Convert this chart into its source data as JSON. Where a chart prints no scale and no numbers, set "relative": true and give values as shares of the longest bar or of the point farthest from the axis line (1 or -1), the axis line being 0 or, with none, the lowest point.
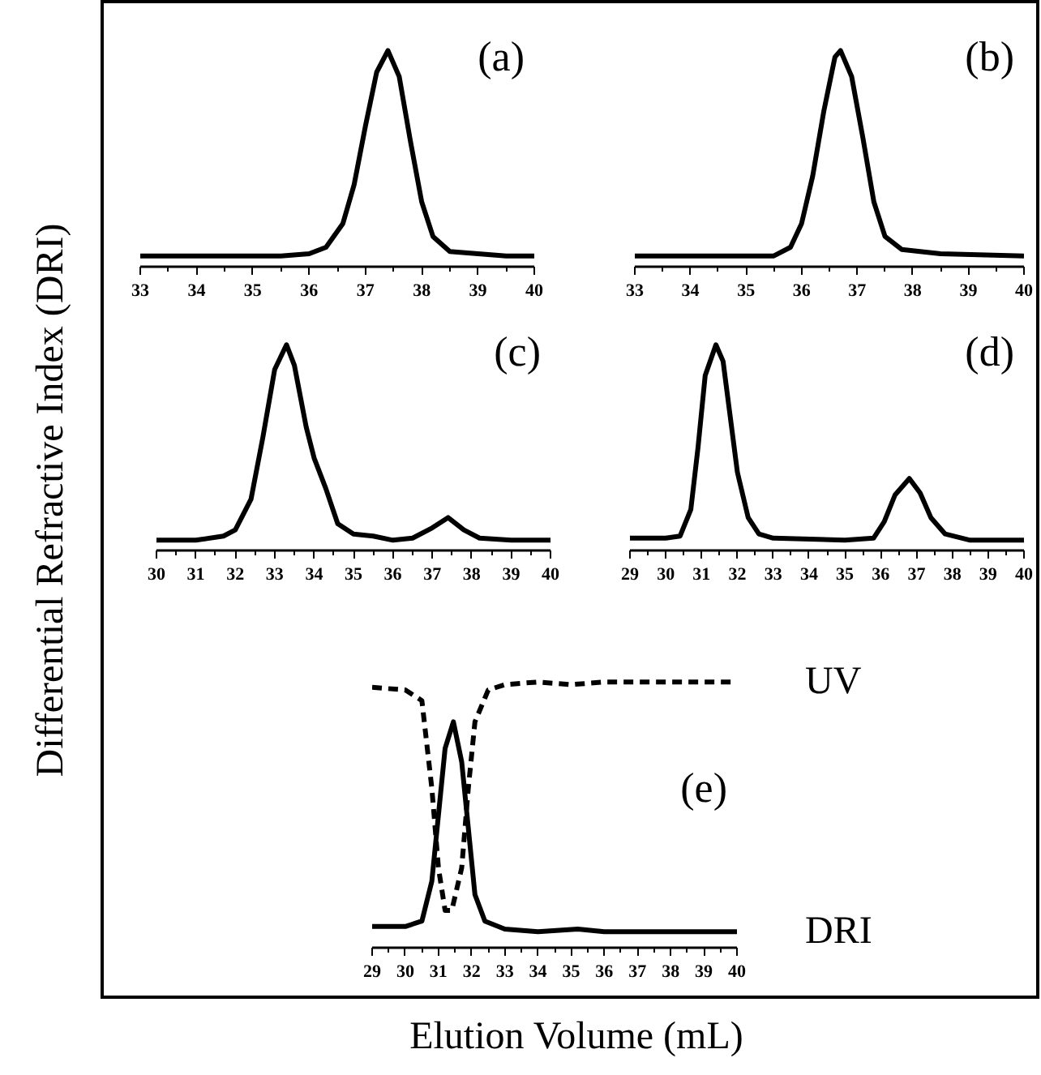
{
  "chart_data": [
    {
      "type": "line",
      "relative": true,
      "ylabel": "Differential Refractive Index (DRI)",
      "annotations": [
        "(a)"
      ],
      "xlim": [
        33,
        40
      ],
      "xticks": [
        33,
        34,
        35,
        36,
        37,
        38,
        39,
        40
      ],
      "grid": false,
      "series": [
        {
          "color": "#000000",
          "line_style": "solid",
          "x": [
            33,
            34,
            35,
            35.5,
            36,
            36.3,
            36.6,
            36.8,
            37.0,
            37.2,
            37.4,
            37.6,
            37.8,
            38.0,
            38.2,
            38.5,
            39,
            39.5,
            40
          ],
          "values": [
            0.05,
            0.05,
            0.05,
            0.05,
            0.06,
            0.09,
            0.2,
            0.38,
            0.65,
            0.9,
            1.0,
            0.88,
            0.58,
            0.3,
            0.14,
            0.07,
            0.06,
            0.05,
            0.05
          ]
        }
      ]
    },
    {
      "type": "line",
      "relative": true,
      "annotations": [
        "(b)"
      ],
      "xlim": [
        33,
        40
      ],
      "xticks": [
        33,
        34,
        35,
        36,
        37,
        38,
        39,
        40
      ],
      "grid": false,
      "series": [
        {
          "color": "#000000",
          "line_style": "solid",
          "x": [
            33,
            34,
            35,
            35.5,
            35.8,
            36.0,
            36.2,
            36.4,
            36.6,
            36.7,
            36.9,
            37.1,
            37.3,
            37.5,
            37.8,
            38.5,
            40
          ],
          "values": [
            0.05,
            0.05,
            0.05,
            0.05,
            0.09,
            0.2,
            0.42,
            0.72,
            0.97,
            1.0,
            0.88,
            0.6,
            0.3,
            0.14,
            0.08,
            0.06,
            0.05
          ]
        }
      ]
    },
    {
      "type": "line",
      "relative": true,
      "annotations": [
        "(c)"
      ],
      "xlim": [
        30,
        40
      ],
      "xticks": [
        30,
        31,
        32,
        33,
        34,
        35,
        36,
        37,
        38,
        39,
        40
      ],
      "grid": false,
      "series": [
        {
          "color": "#000000",
          "line_style": "solid",
          "x": [
            30,
            31,
            31.7,
            32,
            32.4,
            32.7,
            33.0,
            33.3,
            33.5,
            33.8,
            34.0,
            34.3,
            34.6,
            35,
            35.5,
            36,
            36.5,
            37,
            37.4,
            37.8,
            38.2,
            39,
            40
          ],
          "values": [
            0.05,
            0.05,
            0.07,
            0.1,
            0.25,
            0.55,
            0.88,
            1.0,
            0.9,
            0.6,
            0.45,
            0.3,
            0.13,
            0.08,
            0.07,
            0.05,
            0.06,
            0.11,
            0.16,
            0.1,
            0.06,
            0.05,
            0.05
          ]
        }
      ]
    },
    {
      "type": "line",
      "relative": true,
      "annotations": [
        "(d)"
      ],
      "xlim": [
        29,
        40
      ],
      "xticks": [
        29,
        30,
        31,
        32,
        33,
        34,
        35,
        36,
        37,
        38,
        39,
        40
      ],
      "grid": false,
      "series": [
        {
          "color": "#000000",
          "line_style": "solid",
          "x": [
            29,
            30,
            30.4,
            30.7,
            30.9,
            31.1,
            31.4,
            31.6,
            31.8,
            32.0,
            32.3,
            32.6,
            33,
            35,
            35.8,
            36.1,
            36.4,
            36.8,
            37.1,
            37.4,
            37.8,
            38.5,
            40
          ],
          "values": [
            0.06,
            0.06,
            0.07,
            0.2,
            0.5,
            0.85,
            1.0,
            0.92,
            0.65,
            0.38,
            0.16,
            0.08,
            0.06,
            0.05,
            0.06,
            0.14,
            0.27,
            0.35,
            0.28,
            0.16,
            0.08,
            0.05,
            0.05
          ]
        }
      ]
    },
    {
      "type": "line",
      "relative": true,
      "xlabel": "Elution Volume (mL)",
      "annotations": [
        "(e)"
      ],
      "xlim": [
        29,
        40
      ],
      "xticks": [
        29,
        30,
        31,
        32,
        33,
        34,
        35,
        36,
        37,
        38,
        39,
        40
      ],
      "grid": false,
      "series": [
        {
          "name": "UV",
          "color": "#000000",
          "line_style": "dashed",
          "x": [
            29,
            30,
            30.5,
            30.8,
            31.0,
            31.2,
            31.4,
            31.7,
            31.9,
            32.1,
            32.5,
            33,
            34,
            35,
            36,
            40
          ],
          "values": [
            0.98,
            0.97,
            0.93,
            0.6,
            0.3,
            0.14,
            0.14,
            0.3,
            0.6,
            0.85,
            0.97,
            0.99,
            1.0,
            0.99,
            1.0,
            1.0
          ]
        },
        {
          "name": "DRI",
          "color": "#000000",
          "line_style": "solid",
          "x": [
            29,
            30,
            30.5,
            30.8,
            31.0,
            31.2,
            31.45,
            31.7,
            31.9,
            32.1,
            32.4,
            33,
            34,
            35.2,
            36,
            40
          ],
          "values": [
            0.08,
            0.08,
            0.1,
            0.25,
            0.5,
            0.75,
            0.85,
            0.7,
            0.45,
            0.2,
            0.1,
            0.07,
            0.06,
            0.07,
            0.06,
            0.06
          ]
        }
      ]
    }
  ]
}
